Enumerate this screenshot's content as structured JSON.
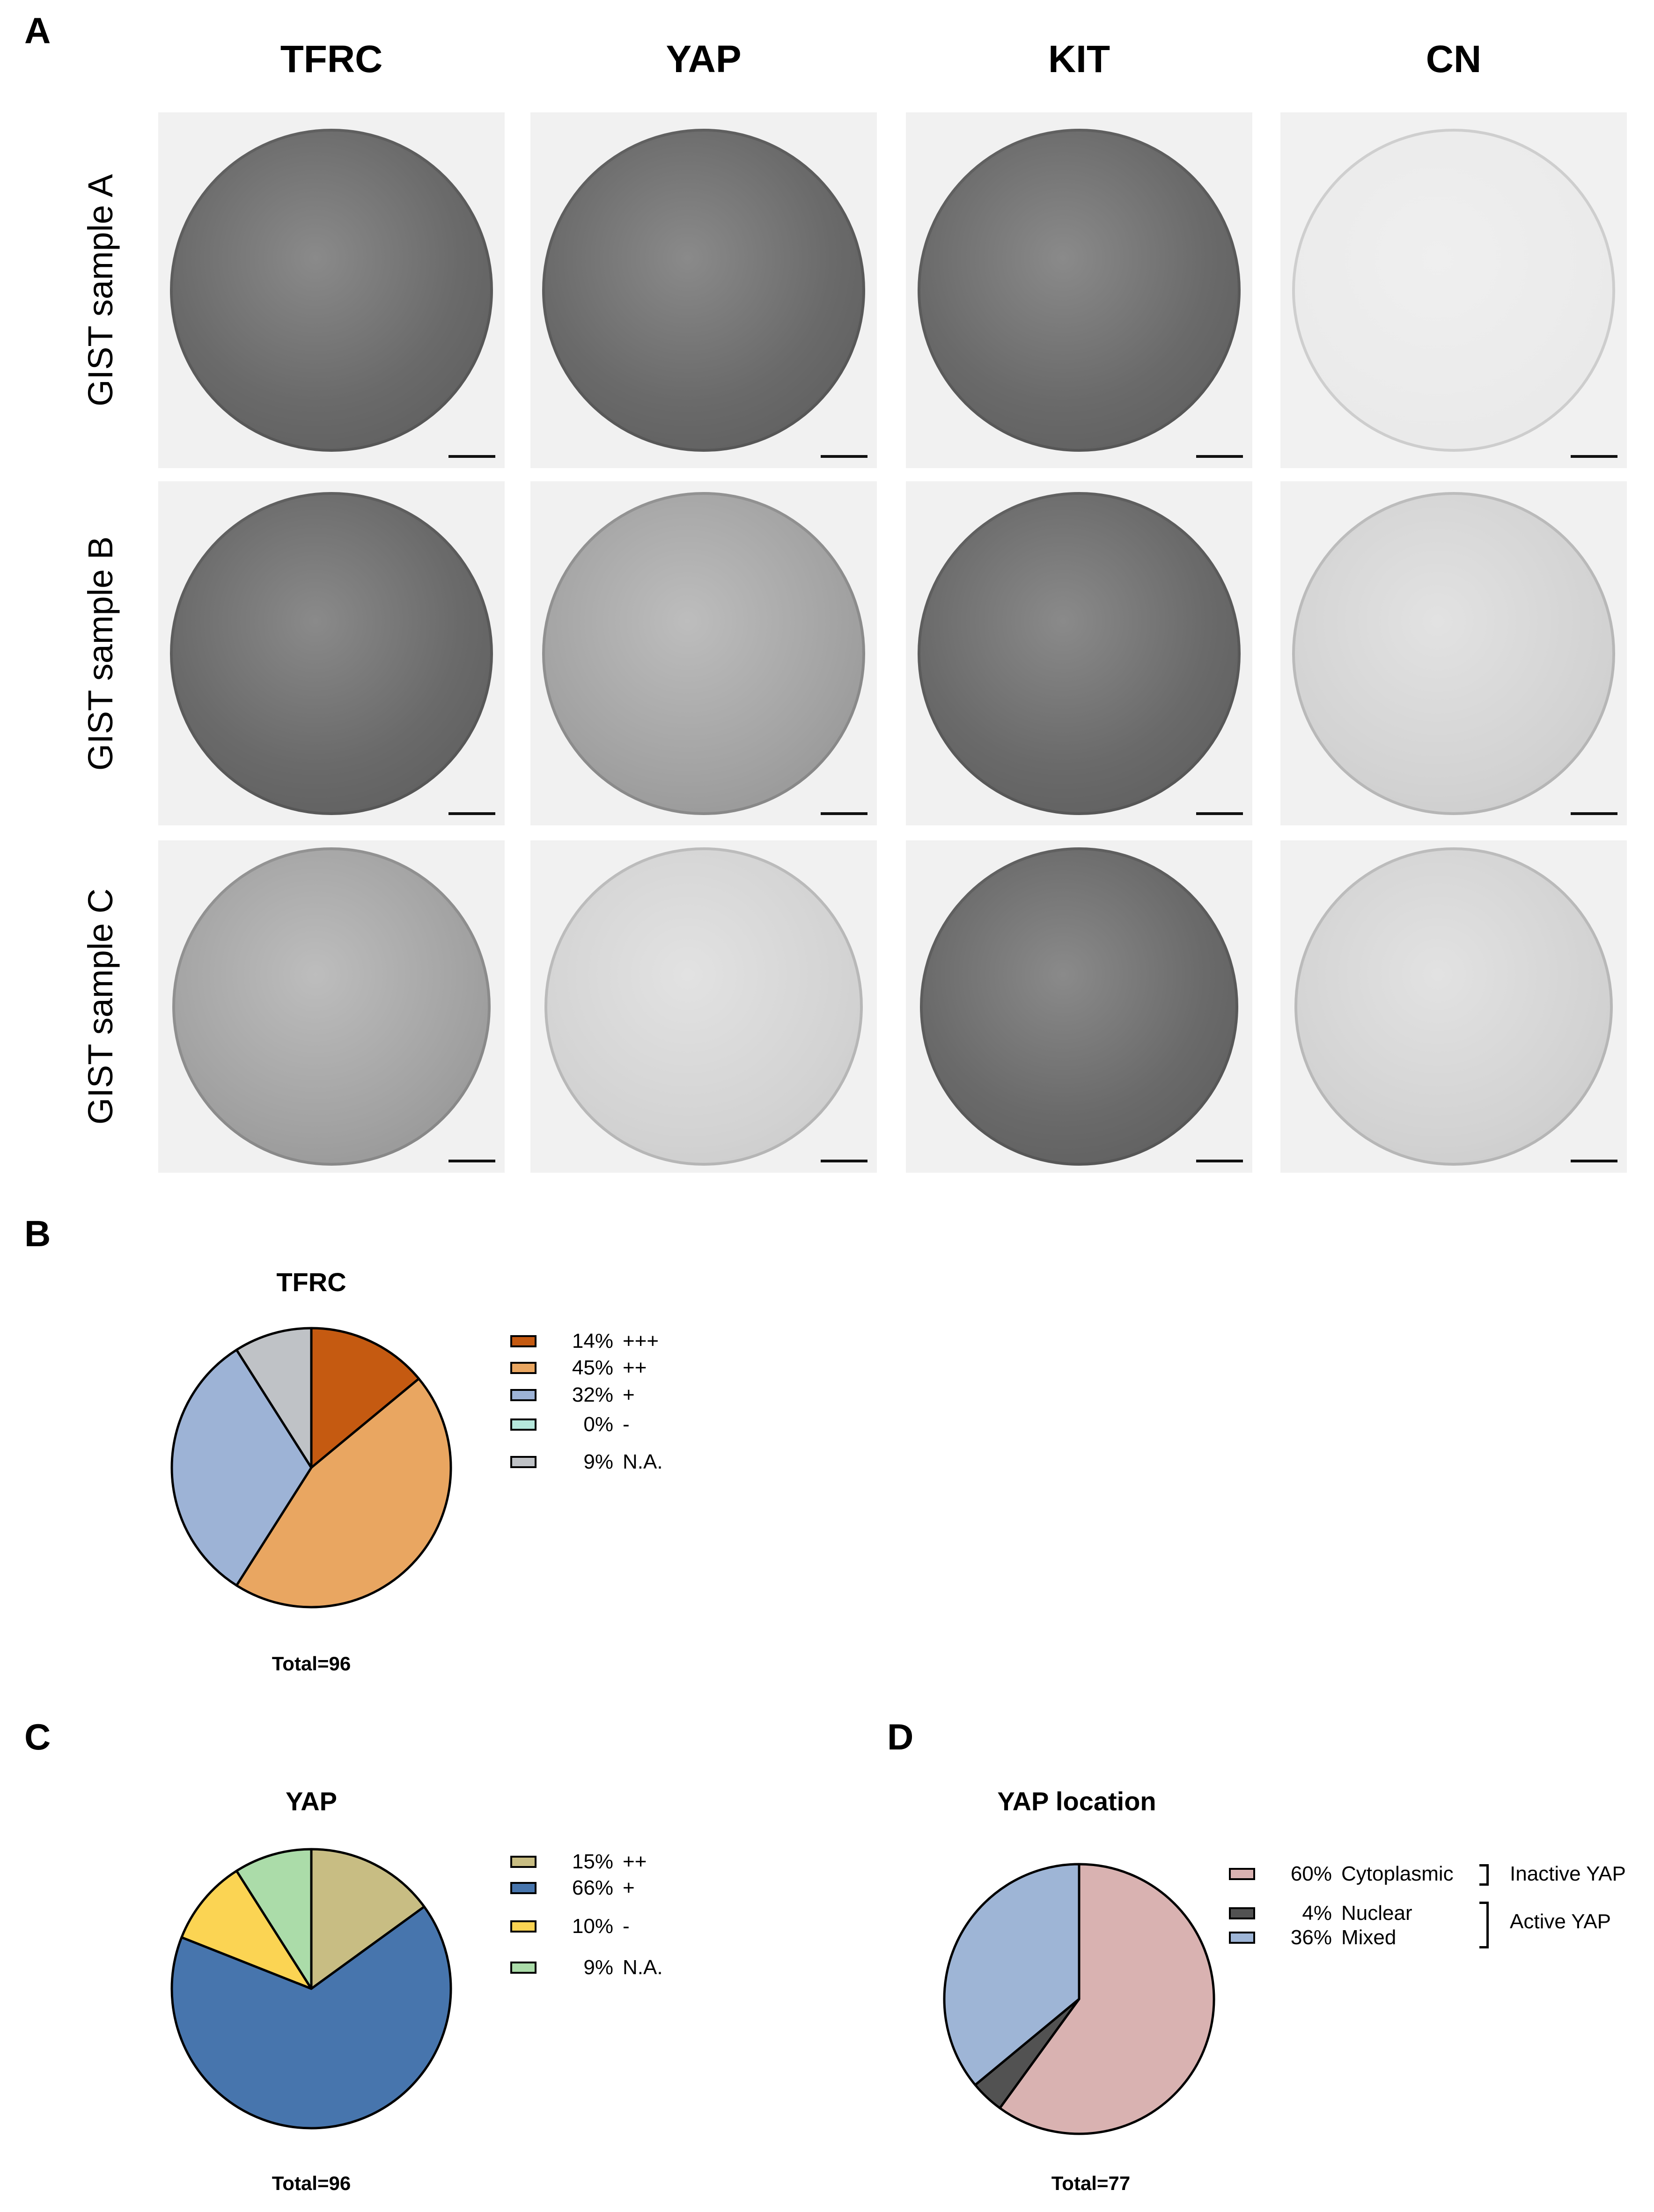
{
  "panels": {
    "a": "A",
    "b": "B",
    "c": "C",
    "d": "D"
  },
  "ihc": {
    "columns": [
      "TFRC",
      "YAP",
      "KIT",
      "CN"
    ],
    "rows": [
      "GIST sample A",
      "GIST sample B",
      "GIST sample C"
    ],
    "stain_level": [
      [
        "strong",
        "strong",
        "strong",
        "none"
      ],
      [
        "strong",
        "moderate",
        "strong",
        "weak"
      ],
      [
        "moderate",
        "weak",
        "strong",
        "weak"
      ]
    ]
  },
  "chart_data": [
    {
      "type": "pie",
      "title": "TFRC",
      "total_label": "Total=96",
      "slices": [
        {
          "pct_label": "14%",
          "label": "+++",
          "value": 14,
          "color": "#c55a11"
        },
        {
          "pct_label": "45%",
          "label": "++",
          "value": 45,
          "color": "#e9a661"
        },
        {
          "pct_label": "32%",
          "label": "+",
          "value": 32,
          "color": "#9db3d6"
        },
        {
          "pct_label": "0%",
          "label": "-",
          "value": 0,
          "color": "#b6e8dc"
        },
        {
          "pct_label": "9%",
          "label": "N.A.",
          "value": 9,
          "color": "#bfc2c6"
        }
      ]
    },
    {
      "type": "pie",
      "title": "YAP",
      "total_label": "Total=96",
      "slices": [
        {
          "pct_label": "15%",
          "label": "++",
          "value": 15,
          "color": "#c8bd83"
        },
        {
          "pct_label": "66%",
          "label": "+",
          "value": 66,
          "color": "#4775ad"
        },
        {
          "pct_label": "10%",
          "label": "-",
          "value": 10,
          "color": "#fbd453"
        },
        {
          "pct_label": "9%",
          "label": "N.A.",
          "value": 9,
          "color": "#abdca9"
        }
      ]
    },
    {
      "type": "pie",
      "title": "YAP location",
      "total_label": "Total=77",
      "slices": [
        {
          "pct_label": "60%",
          "label": "Cytoplasmic",
          "value": 60,
          "color": "#d9b2b1"
        },
        {
          "pct_label": "4%",
          "label": "Nuclear",
          "value": 4,
          "color": "#525252"
        },
        {
          "pct_label": "36%",
          "label": "Mixed",
          "value": 36,
          "color": "#9eb5d6"
        }
      ],
      "groups": [
        "Inactive YAP",
        "Active YAP"
      ]
    }
  ]
}
